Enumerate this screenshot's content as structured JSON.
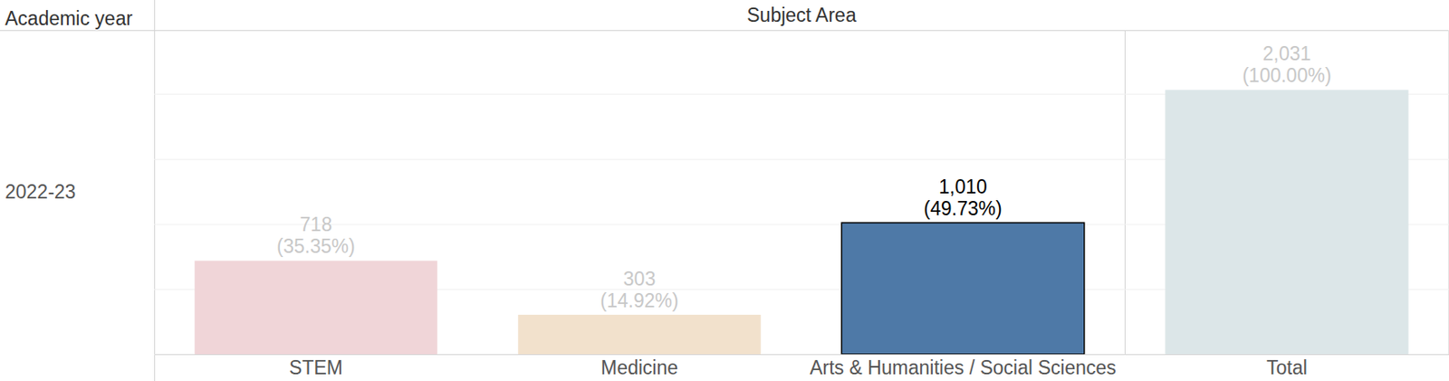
{
  "chart_data": {
    "type": "bar",
    "xlabel": "Subject Area",
    "row_header": "Academic year",
    "row_label": "2022-23",
    "categories": [
      "STEM",
      "Medicine",
      "Arts & Humanities / Social Sciences"
    ],
    "values": [
      718,
      303,
      1010
    ],
    "value_labels": [
      "718",
      "303",
      "1,010"
    ],
    "share_labels": [
      "(35.35%)",
      "(14.92%)",
      "(49.73%)"
    ],
    "colors": [
      "#f0d5d8",
      "#f2e1cc",
      "#4e79a7"
    ],
    "total": {
      "category": "Total",
      "value": 2031,
      "value_label": "2,031",
      "share_label": "(100.00%)",
      "color": "#dce6e8"
    },
    "ylim": [
      0,
      2490
    ],
    "yticks": [
      0,
      500,
      1000,
      1500,
      2000
    ],
    "grid": true,
    "data_labels": true,
    "tick_labels": "x"
  }
}
